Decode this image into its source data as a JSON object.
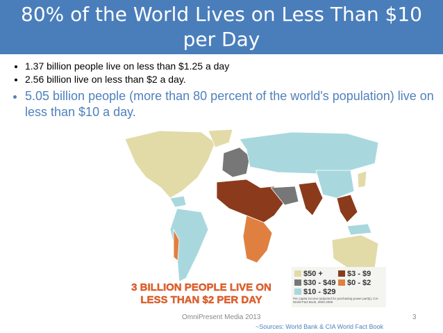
{
  "header": {
    "title": "80% of the World Lives on Less Than $10 per Day"
  },
  "bullets": [
    "1.37 billion people live on less than $1.25 a day",
    "2.56 billion live on less than $2 a day.",
    "5.05 billion people (more than 80 percent of the world's population) live on less than $10 a day."
  ],
  "map": {
    "caption_line1": "3 BILLION PEOPLE LIVE ON",
    "caption_line2": "LESS THAN $2 PER DAY",
    "legend": [
      "$50 +",
      "$3 - $9",
      "$30 - $49",
      "$0 - $2",
      "$10 - $29"
    ],
    "note": "Per capita income (adjusted for purchasing power parity), CIA World Fact Book, 2003-2005"
  },
  "footer": {
    "credit": "OmniPresent Media 2013",
    "page": "3",
    "sources": "~Sources: World Bank & CIA World Fact Book"
  }
}
